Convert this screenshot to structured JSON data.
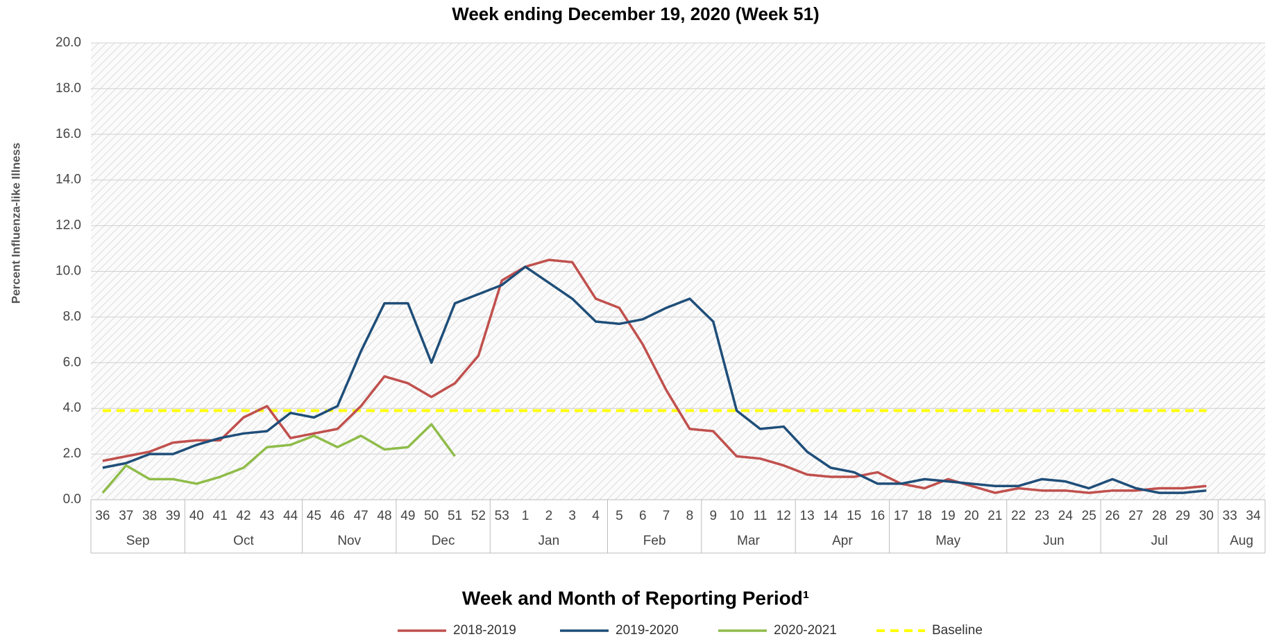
{
  "chart_data": {
    "type": "line",
    "title": "Week ending December 19, 2020 (Week 51)",
    "x_label": "Week and Month of Reporting Period¹",
    "y_label": "Percent Influenza-like Illness",
    "groups": [
      {
        "month": "Sep",
        "weeks": [
          "36",
          "37",
          "38",
          "39"
        ]
      },
      {
        "month": "Oct",
        "weeks": [
          "40",
          "41",
          "42",
          "43",
          "44"
        ]
      },
      {
        "month": "Nov",
        "weeks": [
          "45",
          "46",
          "47",
          "48"
        ]
      },
      {
        "month": "Dec",
        "weeks": [
          "49",
          "50",
          "51",
          "52"
        ]
      },
      {
        "month": "Jan",
        "weeks": [
          "53",
          "1",
          "2",
          "3",
          "4"
        ]
      },
      {
        "month": "Feb",
        "weeks": [
          "5",
          "6",
          "7",
          "8"
        ]
      },
      {
        "month": "Mar",
        "weeks": [
          "9",
          "10",
          "11",
          "12"
        ]
      },
      {
        "month": "Apr",
        "weeks": [
          "13",
          "14",
          "15",
          "16"
        ]
      },
      {
        "month": "May",
        "weeks": [
          "17",
          "18",
          "19",
          "20",
          "21"
        ]
      },
      {
        "month": "Jun",
        "weeks": [
          "22",
          "23",
          "24",
          "25"
        ]
      },
      {
        "month": "Jul",
        "weeks": [
          "26",
          "27",
          "28",
          "29",
          "30"
        ]
      },
      {
        "month": "Aug",
        "weeks": [
          "33",
          "34"
        ]
      }
    ],
    "series": [
      {
        "name": "2018-2019",
        "color": "#c0504d",
        "dashed": false,
        "values": [
          1.7,
          1.9,
          2.1,
          2.5,
          2.6,
          2.6,
          3.6,
          4.1,
          2.7,
          2.9,
          3.1,
          4.1,
          5.4,
          5.1,
          4.5,
          5.1,
          6.3,
          9.6,
          10.2,
          10.5,
          10.4,
          8.8,
          8.4,
          6.8,
          4.8,
          3.1,
          3.0,
          1.9,
          1.8,
          1.5,
          1.1,
          1.0,
          1.0,
          1.2,
          0.7,
          0.5,
          0.9,
          0.6,
          0.3,
          0.5,
          0.4,
          0.4,
          0.3,
          0.4,
          0.4,
          0.5,
          0.5,
          0.6,
          null,
          null
        ]
      },
      {
        "name": "2019-2020",
        "color": "#1f4e79",
        "dashed": false,
        "values": [
          1.4,
          1.6,
          2.0,
          2.0,
          2.4,
          2.7,
          2.9,
          3.0,
          3.8,
          3.6,
          4.1,
          6.5,
          8.6,
          8.6,
          6.0,
          8.6,
          9.0,
          9.4,
          10.2,
          9.5,
          8.8,
          7.8,
          7.7,
          7.9,
          8.4,
          8.8,
          7.8,
          3.9,
          3.1,
          3.2,
          2.1,
          1.4,
          1.2,
          0.7,
          0.7,
          0.9,
          0.8,
          0.7,
          0.6,
          0.6,
          0.9,
          0.8,
          0.5,
          0.9,
          0.5,
          0.3,
          0.3,
          0.4,
          null,
          null
        ]
      },
      {
        "name": "2020-2021",
        "color": "#8fbc4a",
        "dashed": false,
        "values": [
          0.3,
          1.5,
          0.9,
          0.9,
          0.7,
          1.0,
          1.4,
          2.3,
          2.4,
          2.8,
          2.3,
          2.8,
          2.2,
          2.3,
          3.3,
          1.9,
          null,
          null,
          null,
          null,
          null,
          null,
          null,
          null,
          null,
          null,
          null,
          null,
          null,
          null,
          null,
          null,
          null,
          null,
          null,
          null,
          null,
          null,
          null,
          null,
          null,
          null,
          null,
          null,
          null,
          null,
          null,
          null,
          null,
          null
        ]
      },
      {
        "name": "Baseline",
        "color": "#ffff00",
        "dashed": true,
        "values": [
          3.9,
          3.9,
          3.9,
          3.9,
          3.9,
          3.9,
          3.9,
          3.9,
          3.9,
          3.9,
          3.9,
          3.9,
          3.9,
          3.9,
          3.9,
          3.9,
          3.9,
          3.9,
          3.9,
          3.9,
          3.9,
          3.9,
          3.9,
          3.9,
          3.9,
          3.9,
          3.9,
          3.9,
          3.9,
          3.9,
          3.9,
          3.9,
          3.9,
          3.9,
          3.9,
          3.9,
          3.9,
          3.9,
          3.9,
          3.9,
          3.9,
          3.9,
          3.9,
          3.9,
          3.9,
          3.9,
          3.9,
          3.9,
          null,
          null
        ]
      }
    ],
    "ylim": [
      0,
      20
    ],
    "yticks": [
      {
        "value": 0,
        "label": "0.0"
      },
      {
        "value": 2,
        "label": "2.0"
      },
      {
        "value": 4,
        "label": "4.0"
      },
      {
        "value": 6,
        "label": "6.0"
      },
      {
        "value": 8,
        "label": "8.0"
      },
      {
        "value": 10,
        "label": "10.0"
      },
      {
        "value": 12,
        "label": "12.0"
      },
      {
        "value": 14,
        "label": "14.0"
      },
      {
        "value": 16,
        "label": "16.0"
      },
      {
        "value": 18,
        "label": "18.0"
      },
      {
        "value": 20,
        "label": "20.0"
      }
    ],
    "grid": true,
    "legend": "bottom"
  }
}
